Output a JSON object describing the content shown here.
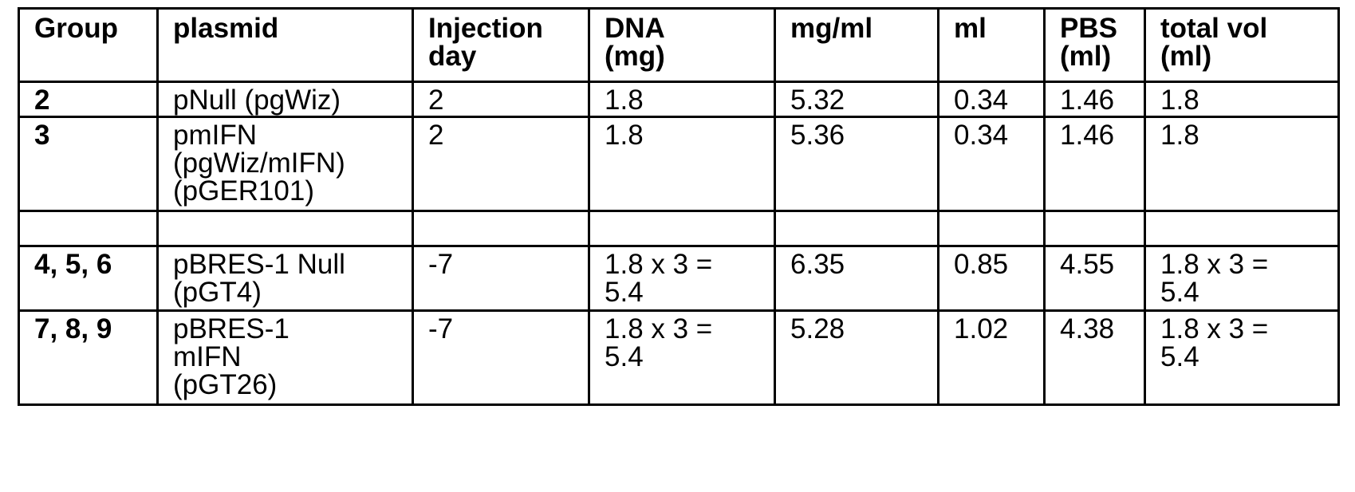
{
  "top_fragment": "· · · ·",
  "table": {
    "headers": [
      "Group",
      "plasmid",
      "Injection\nday",
      "DNA\n(mg)",
      "mg/ml",
      "ml",
      "PBS\n(ml)",
      "total vol\n(ml)"
    ],
    "rows": [
      [
        "2",
        "pNull (pgWiz)",
        "2",
        "1.8",
        "5.32",
        "0.34",
        "1.46",
        "1.8"
      ],
      [
        "3",
        "pmIFN\n(pgWiz/mIFN)\n(pGER101)",
        "2",
        "1.8",
        "5.36",
        "0.34",
        "1.46",
        "1.8"
      ],
      [
        "",
        "",
        "",
        "",
        "",
        "",
        "",
        ""
      ],
      [
        "4, 5, 6",
        "pBRES-1  Null\n(pGT4)",
        "-7",
        "1.8 x 3 =\n5.4",
        "6.35",
        "0.85",
        "4.55",
        "1.8 x 3 =\n5.4"
      ],
      [
        "7, 8, 9",
        "pBRES-1\nmIFN\n(pGT26)",
        "-7",
        "1.8 x 3 =\n5.4",
        "5.28",
        "1.02",
        "4.38",
        "1.8 x 3 =\n5.4"
      ]
    ]
  }
}
